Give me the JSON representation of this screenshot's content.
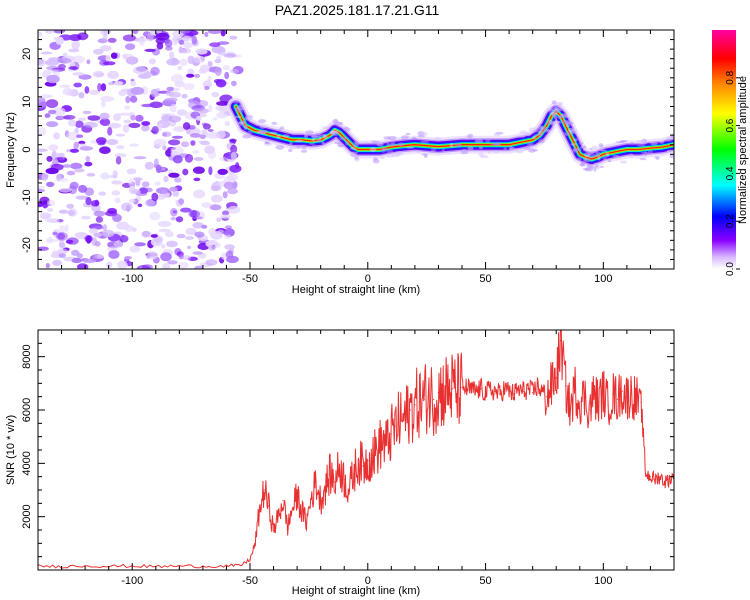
{
  "title": "PAZ1.2025.181.17.21.G11",
  "chart_data": [
    {
      "type": "heatmap",
      "xlabel": "Height of straight line (km)",
      "ylabel": "Frequency (Hz)",
      "xlim": [
        -140,
        130
      ],
      "ylim": [
        -25,
        25
      ],
      "xticks": [
        -100,
        -50,
        0,
        50,
        100
      ],
      "yticks": [
        -20,
        -10,
        0,
        10,
        20
      ],
      "noise_region": {
        "x": [
          -140,
          -55
        ],
        "y": [
          -25,
          25
        ]
      },
      "ridge": {
        "x": [
          -56,
          -52,
          -48,
          -44,
          -40,
          -36,
          -32,
          -28,
          -24,
          -20,
          -16,
          -14,
          -12,
          -10,
          -8,
          -6,
          -4,
          0,
          5,
          10,
          15,
          20,
          25,
          30,
          35,
          40,
          45,
          50,
          55,
          60,
          65,
          70,
          73,
          76,
          78,
          80,
          82,
          84,
          86,
          88,
          90,
          92,
          95,
          98,
          100,
          105,
          110,
          115,
          120,
          125,
          130
        ],
        "y": [
          9,
          5,
          4,
          3.5,
          3,
          2.5,
          2,
          2,
          1.8,
          2,
          3,
          4,
          3.5,
          2.5,
          1.5,
          0.5,
          0,
          0,
          0,
          0.5,
          0.8,
          1,
          0.8,
          0.6,
          0.8,
          1,
          1,
          1,
          1,
          1,
          1.5,
          2,
          3,
          5,
          7,
          8,
          7,
          5,
          3,
          1,
          -1,
          -1.5,
          -2,
          -1.5,
          -1,
          -0.5,
          0,
          0,
          0.3,
          0.5,
          1
        ]
      },
      "colorbar": {
        "label": "Normalized spectral amplitude",
        "range": [
          0,
          1
        ],
        "ticks": [
          "0.0",
          "0.2",
          "0.4",
          "0.6",
          "0.8"
        ],
        "colors": [
          "#ffffff",
          "#8a00ff",
          "#0000ff",
          "#00ffff",
          "#00ff00",
          "#ffff00",
          "#ff8000",
          "#ff0000",
          "#ff00a0"
        ]
      }
    },
    {
      "type": "line",
      "xlabel": "Height of straight line (km)",
      "ylabel": "SNR (10 * v/v)",
      "xlim": [
        -140,
        130
      ],
      "ylim": [
        0,
        9000
      ],
      "xticks": [
        -100,
        -50,
        0,
        50,
        100
      ],
      "yticks": [
        2000,
        4000,
        6000,
        8000
      ],
      "line_color": "#e83030",
      "series": [
        {
          "x": [
            -140,
            -130,
            -120,
            -110,
            -100,
            -90,
            -80,
            -70,
            -60,
            -54,
            -50,
            -48,
            -46,
            -44,
            -42,
            -40,
            -38,
            -36,
            -34,
            -32,
            -30,
            -28,
            -26,
            -24,
            -22,
            -20,
            -18,
            -16,
            -14,
            -12,
            -10,
            -8,
            -6,
            -4,
            -2,
            0,
            2,
            4,
            6,
            8,
            10,
            12,
            14,
            16,
            18,
            20,
            22,
            24,
            26,
            28,
            30,
            32,
            34,
            36,
            38,
            40,
            42,
            44,
            46,
            48,
            50,
            52,
            54,
            56,
            58,
            60,
            62,
            64,
            66,
            68,
            70,
            72,
            74,
            76,
            78,
            80,
            82,
            84,
            86,
            88,
            90,
            92,
            94,
            96,
            98,
            100,
            102,
            104,
            106,
            108,
            110,
            112,
            114,
            116,
            118,
            120,
            122,
            124,
            126,
            128,
            130
          ],
          "y": [
            150,
            130,
            160,
            140,
            150,
            130,
            150,
            140,
            150,
            170,
            400,
            900,
            2200,
            3000,
            2400,
            1500,
            2000,
            2600,
            1600,
            2300,
            2800,
            2200,
            1800,
            2700,
            3300,
            2600,
            3100,
            3600,
            3300,
            3900,
            3400,
            3000,
            3600,
            4100,
            3900,
            4100,
            4300,
            4500,
            4800,
            4700,
            5100,
            5400,
            5600,
            5700,
            6000,
            6200,
            6300,
            6400,
            6600,
            6400,
            6650,
            6700,
            6750,
            6800,
            6700,
            6850,
            6800,
            6750,
            6700,
            6800,
            6650,
            6750,
            6700,
            6600,
            6800,
            6700,
            6600,
            6750,
            6700,
            6800,
            6650,
            6900,
            6700,
            6500,
            6900,
            7200,
            8600,
            6900,
            6000,
            6800,
            6300,
            6500,
            6000,
            6600,
            6300,
            6700,
            6200,
            6600,
            6400,
            6700,
            6500,
            6600,
            6400,
            6300,
            3600,
            3500,
            3400,
            3500,
            3300,
            3400,
            3500
          ]
        }
      ]
    }
  ]
}
